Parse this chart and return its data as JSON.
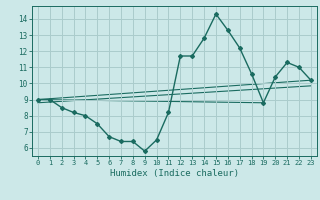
{
  "title": "",
  "xlabel": "Humidex (Indice chaleur)",
  "bg_color": "#cce8e8",
  "line_color": "#1a6b60",
  "grid_color": "#aacccc",
  "xlim": [
    -0.5,
    23.5
  ],
  "ylim": [
    5.5,
    14.8
  ],
  "xticks": [
    0,
    1,
    2,
    3,
    4,
    5,
    6,
    7,
    8,
    9,
    10,
    11,
    12,
    13,
    14,
    15,
    16,
    17,
    18,
    19,
    20,
    21,
    22,
    23
  ],
  "yticks": [
    6,
    7,
    8,
    9,
    10,
    11,
    12,
    13,
    14
  ],
  "main_x": [
    0,
    1,
    2,
    3,
    4,
    5,
    6,
    7,
    8,
    9,
    10,
    11,
    12,
    13,
    14,
    15,
    16,
    17,
    18,
    19,
    20,
    21,
    22,
    23
  ],
  "main_y": [
    9,
    9,
    8.5,
    8.2,
    8.0,
    7.5,
    6.7,
    6.4,
    6.4,
    5.8,
    6.5,
    8.2,
    11.7,
    11.7,
    12.8,
    14.3,
    13.3,
    12.2,
    10.6,
    8.8,
    10.4,
    11.3,
    11.0,
    10.2
  ],
  "line2_x": [
    0,
    23
  ],
  "line2_y": [
    9.0,
    10.2
  ],
  "line3_x": [
    0,
    19
  ],
  "line3_y": [
    9.0,
    8.8
  ],
  "line4_x": [
    0,
    23
  ],
  "line4_y": [
    8.8,
    9.85
  ],
  "figsize": [
    3.2,
    2.0
  ],
  "dpi": 100
}
